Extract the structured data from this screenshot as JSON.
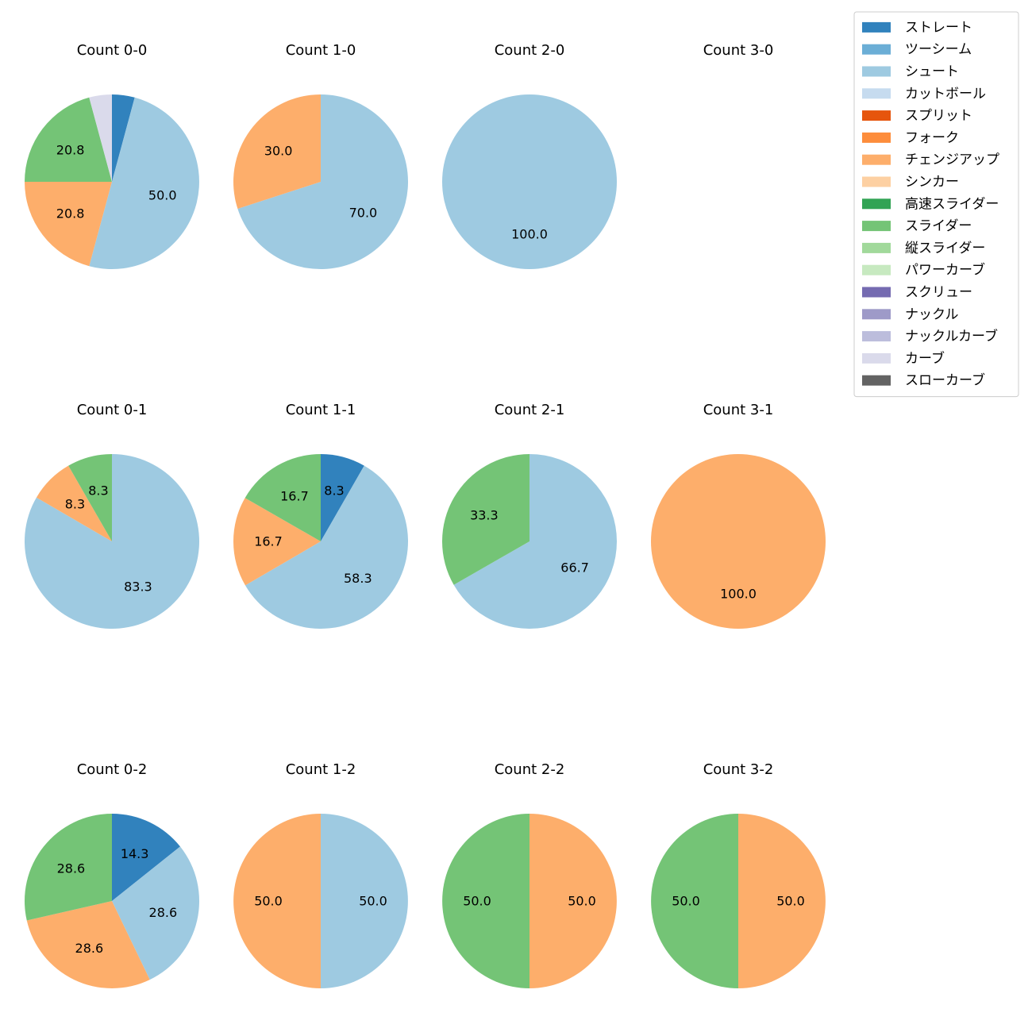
{
  "chart_data": {
    "type": "pie",
    "legend": {
      "placement": "top-right",
      "entries": [
        {
          "name": "ストレート",
          "color": "#3182bd"
        },
        {
          "name": "ツーシーム",
          "color": "#6baed6"
        },
        {
          "name": "シュート",
          "color": "#9ecae1"
        },
        {
          "name": "カットボール",
          "color": "#c6dbef"
        },
        {
          "name": "スプリット",
          "color": "#e6550d"
        },
        {
          "name": "フォーク",
          "color": "#fd8d3c"
        },
        {
          "name": "チェンジアップ",
          "color": "#fdae6b"
        },
        {
          "name": "シンカー",
          "color": "#fdd0a2"
        },
        {
          "name": "高速スライダー",
          "color": "#31a354"
        },
        {
          "name": "スライダー",
          "color": "#74c476"
        },
        {
          "name": "縦スライダー",
          "color": "#a1d99b"
        },
        {
          "name": "パワーカーブ",
          "color": "#c7e9c0"
        },
        {
          "name": "スクリュー",
          "color": "#756bb1"
        },
        {
          "name": "ナックル",
          "color": "#9e9ac8"
        },
        {
          "name": "ナックルカーブ",
          "color": "#bcbddc"
        },
        {
          "name": "カーブ",
          "color": "#dadaeb"
        },
        {
          "name": "スローカーブ",
          "color": "#636363"
        }
      ]
    },
    "pies": [
      {
        "title": "Count 0-0",
        "slices": [
          {
            "pitch": "ストレート",
            "value": 4.2,
            "label": ""
          },
          {
            "pitch": "シュート",
            "value": 50.0,
            "label": "50.0"
          },
          {
            "pitch": "チェンジアップ",
            "value": 20.8,
            "label": "20.8"
          },
          {
            "pitch": "スライダー",
            "value": 20.8,
            "label": "20.8"
          },
          {
            "pitch": "カーブ",
            "value": 4.2,
            "label": ""
          }
        ]
      },
      {
        "title": "Count 1-0",
        "slices": [
          {
            "pitch": "シュート",
            "value": 70.0,
            "label": "70.0"
          },
          {
            "pitch": "チェンジアップ",
            "value": 30.0,
            "label": "30.0"
          }
        ]
      },
      {
        "title": "Count 2-0",
        "slices": [
          {
            "pitch": "シュート",
            "value": 100.0,
            "label": "100.0"
          }
        ]
      },
      {
        "title": "Count 3-0",
        "slices": []
      },
      {
        "title": "Count 0-1",
        "slices": [
          {
            "pitch": "シュート",
            "value": 83.3,
            "label": "83.3"
          },
          {
            "pitch": "チェンジアップ",
            "value": 8.3,
            "label": "8.3"
          },
          {
            "pitch": "スライダー",
            "value": 8.3,
            "label": "8.3"
          }
        ]
      },
      {
        "title": "Count 1-1",
        "slices": [
          {
            "pitch": "ストレート",
            "value": 8.3,
            "label": "8.3"
          },
          {
            "pitch": "シュート",
            "value": 58.3,
            "label": "58.3"
          },
          {
            "pitch": "チェンジアップ",
            "value": 16.7,
            "label": "16.7"
          },
          {
            "pitch": "スライダー",
            "value": 16.7,
            "label": "16.7"
          }
        ]
      },
      {
        "title": "Count 2-1",
        "slices": [
          {
            "pitch": "シュート",
            "value": 66.7,
            "label": "66.7"
          },
          {
            "pitch": "スライダー",
            "value": 33.3,
            "label": "33.3"
          }
        ]
      },
      {
        "title": "Count 3-1",
        "slices": [
          {
            "pitch": "チェンジアップ",
            "value": 100.0,
            "label": "100.0"
          }
        ]
      },
      {
        "title": "Count 0-2",
        "slices": [
          {
            "pitch": "ストレート",
            "value": 14.3,
            "label": "14.3"
          },
          {
            "pitch": "シュート",
            "value": 28.6,
            "label": "28.6"
          },
          {
            "pitch": "チェンジアップ",
            "value": 28.6,
            "label": "28.6"
          },
          {
            "pitch": "スライダー",
            "value": 28.6,
            "label": "28.6"
          }
        ]
      },
      {
        "title": "Count 1-2",
        "slices": [
          {
            "pitch": "シュート",
            "value": 50.0,
            "label": "50.0"
          },
          {
            "pitch": "チェンジアップ",
            "value": 50.0,
            "label": "50.0"
          }
        ]
      },
      {
        "title": "Count 2-2",
        "slices": [
          {
            "pitch": "チェンジアップ",
            "value": 50.0,
            "label": "50.0"
          },
          {
            "pitch": "スライダー",
            "value": 50.0,
            "label": "50.0"
          }
        ]
      },
      {
        "title": "Count 3-2",
        "slices": [
          {
            "pitch": "チェンジアップ",
            "value": 50.0,
            "label": "50.0"
          },
          {
            "pitch": "スライダー",
            "value": 50.0,
            "label": "50.0"
          }
        ]
      }
    ]
  }
}
